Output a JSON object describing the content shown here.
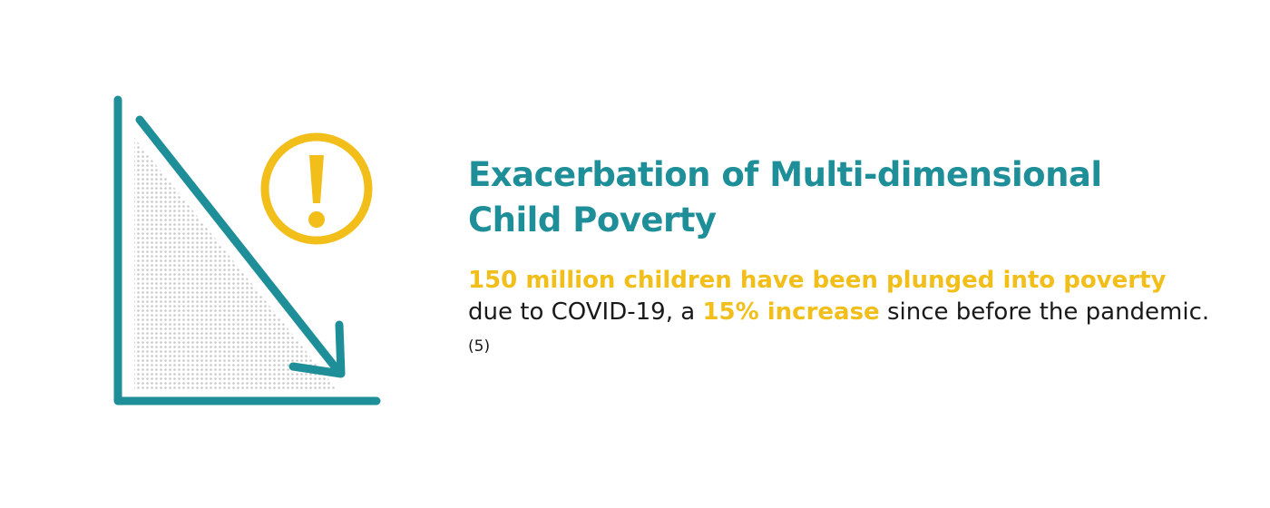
{
  "title": {
    "line1": "Exacerbation of Multi-dimensional",
    "line2": "Child Poverty"
  },
  "body": {
    "highlight_lead": "150 million children have been plunged into poverty",
    "text_1": " due to COVID-19, a ",
    "highlight_pct": "15% increase",
    "text_2": " since before the pandemic. ",
    "citation": "(5)"
  },
  "graphic": {
    "icon": "declining-arrow-chart-icon",
    "alert_icon": "exclamation-circle-icon"
  },
  "colors": {
    "teal": "#1e8f98",
    "yellow": "#f2be1a",
    "text": "#1a1a1a",
    "dots": "#c9c9c9"
  }
}
